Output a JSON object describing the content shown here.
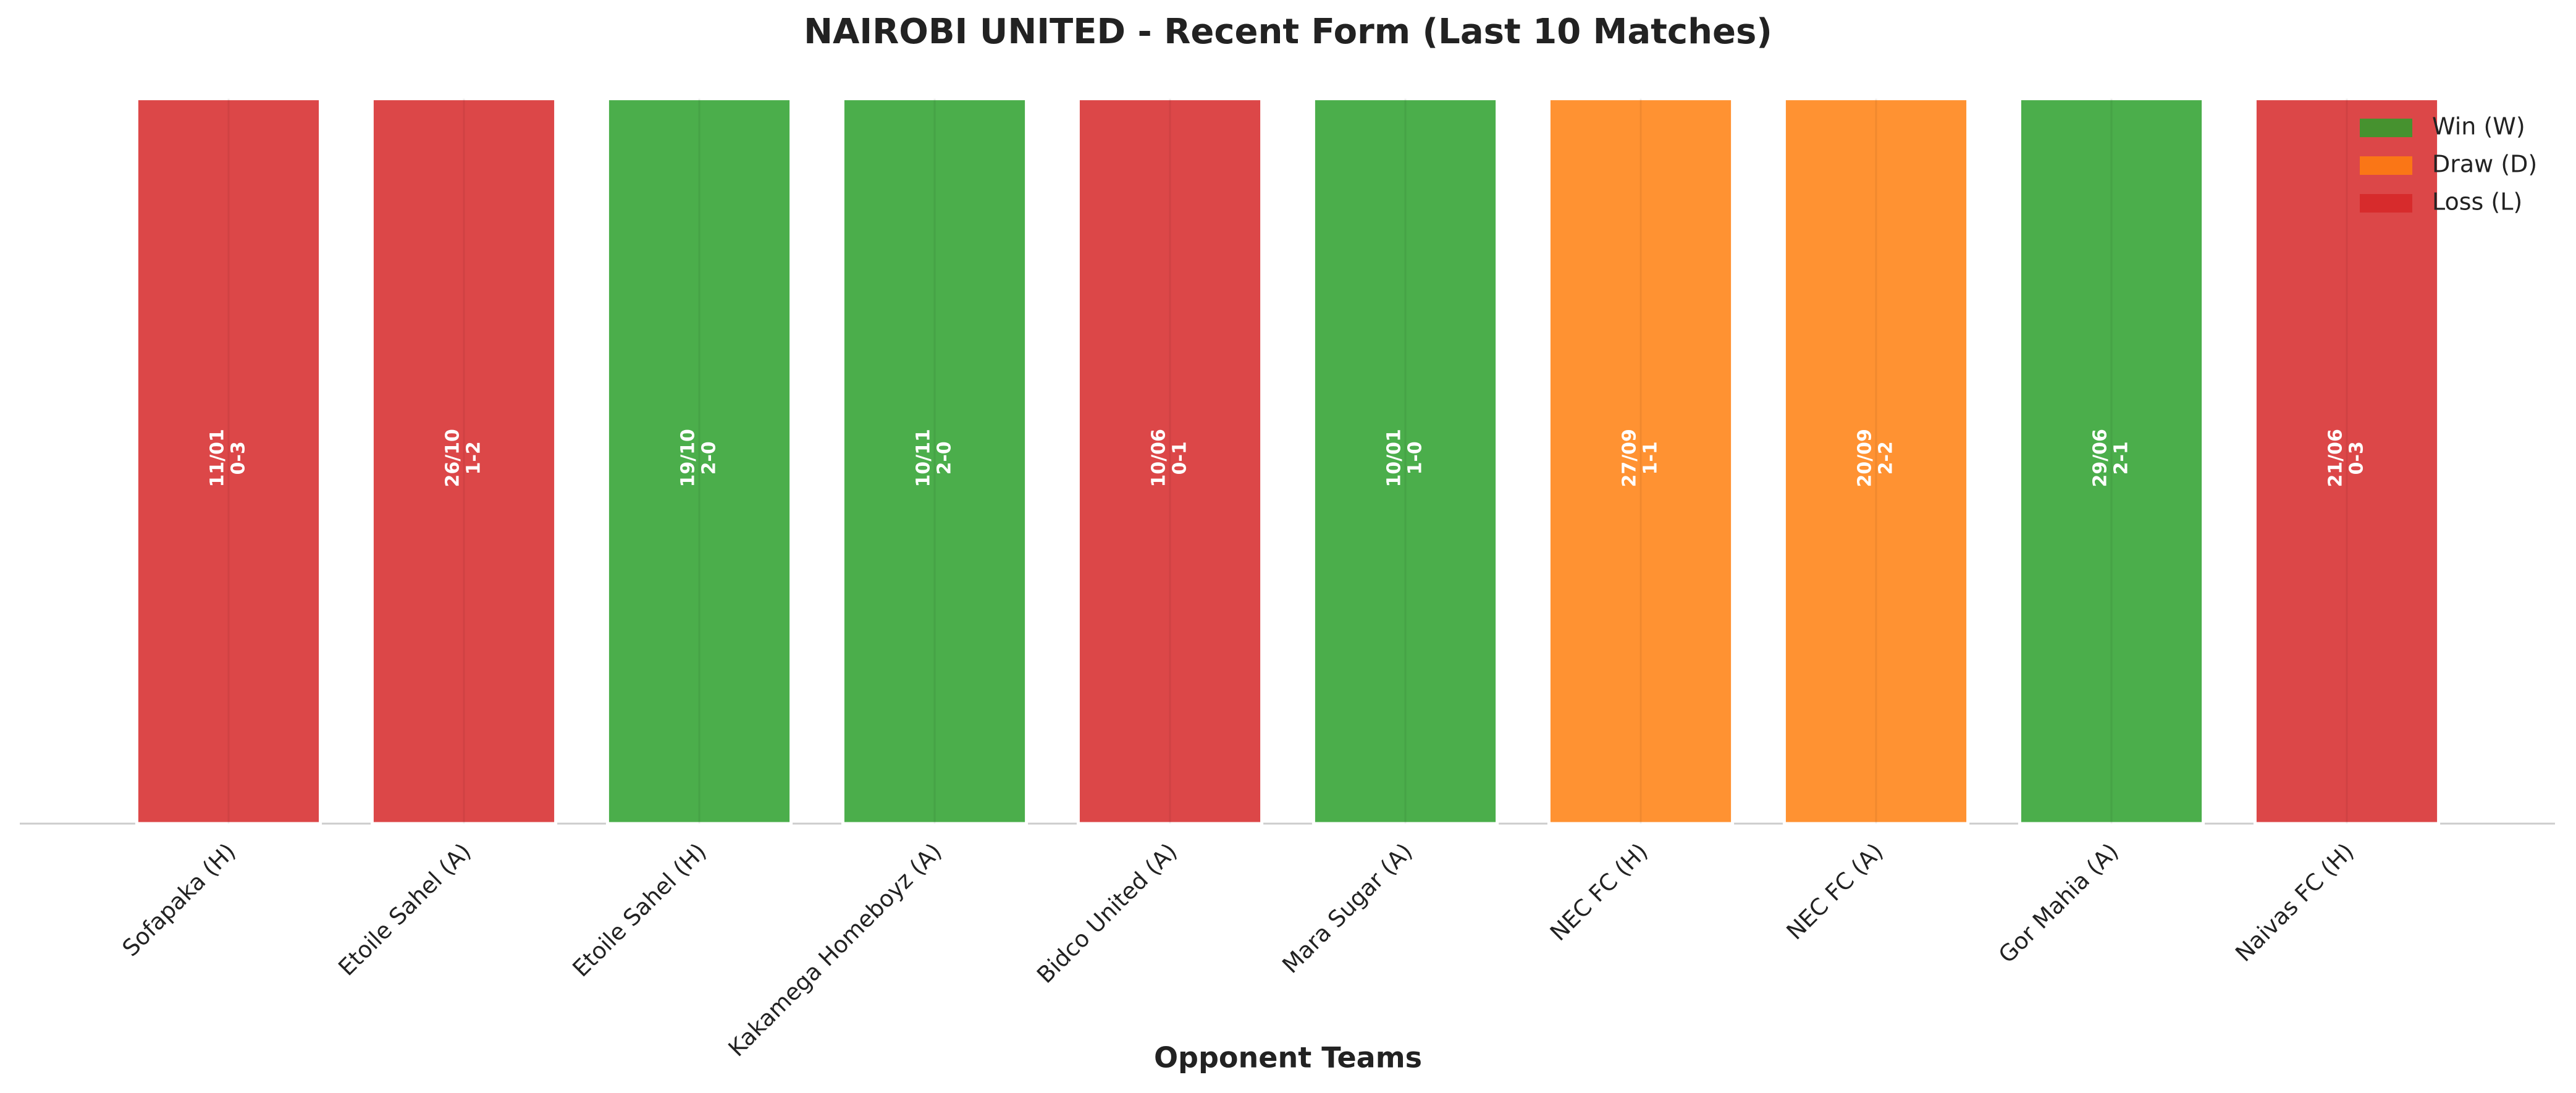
{
  "chart_data": {
    "type": "bar",
    "title": "NAIROBI UNITED - Recent Form (Last 10 Matches)",
    "xlabel": "Opponent Teams",
    "categories": [
      "Sofapaka (H)",
      "Etoile Sahel (A)",
      "Etoile Sahel (H)",
      "Kakamega Homeboyz (A)",
      "Bidco United (A)",
      "Mara Sugar (A)",
      "NEC FC (H)",
      "NEC FC (A)",
      "Gor Mahia (A)",
      "Naivas FC (H)"
    ],
    "values": [
      1,
      1,
      1,
      1,
      1,
      1,
      1,
      1,
      1,
      1
    ],
    "dates": [
      "11/01",
      "26/10",
      "19/10",
      "10/11",
      "10/06",
      "10/01",
      "27/09",
      "20/09",
      "29/06",
      "21/06"
    ],
    "scores": [
      "0-3",
      "1-2",
      "2-0",
      "2-0",
      "0-1",
      "1-0",
      "1-1",
      "2-2",
      "2-1",
      "0-3"
    ],
    "colors": [
      "#d62728",
      "#d62728",
      "#2ca02c",
      "#2ca02c",
      "#d62728",
      "#2ca02c",
      "#ff7f0e",
      "#ff7f0e",
      "#2ca02c",
      "#d62728"
    ],
    "legend": [
      {
        "name": "Win (W)",
        "color": "#2ca02c"
      },
      {
        "name": "Draw (D)",
        "color": "#ff7f0e"
      },
      {
        "name": "Loss (L)",
        "color": "#d62728"
      }
    ],
    "legend_position": "upper right",
    "ylim": [
      0,
      1.05
    ]
  }
}
